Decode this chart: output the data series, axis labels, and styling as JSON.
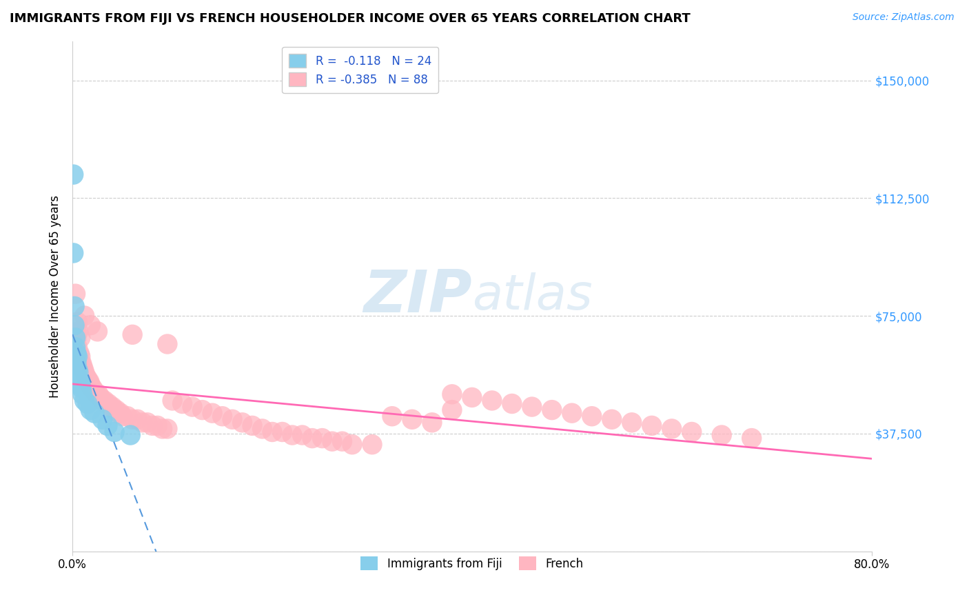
{
  "title": "IMMIGRANTS FROM FIJI VS FRENCH HOUSEHOLDER INCOME OVER 65 YEARS CORRELATION CHART",
  "source": "Source: ZipAtlas.com",
  "ylabel": "Householder Income Over 65 years",
  "xlim": [
    0.0,
    0.8
  ],
  "ylim": [
    0,
    162500
  ],
  "yticks": [
    0,
    37500,
    75000,
    112500,
    150000
  ],
  "ytick_labels": [
    "",
    "$37,500",
    "$75,000",
    "$112,500",
    "$150,000"
  ],
  "xticks": [
    0.0,
    0.8
  ],
  "xtick_labels": [
    "0.0%",
    "80.0%"
  ],
  "fiji_R": "-0.118",
  "fiji_N": "24",
  "french_R": "-0.385",
  "french_N": "88",
  "fiji_color": "#87CEEB",
  "french_color": "#FFB6C1",
  "fiji_line_color": "#5599DD",
  "french_line_color": "#FF69B4",
  "background_color": "#ffffff",
  "grid_color": "#cccccc",
  "watermark": "ZIPatlas",
  "fiji_scatter_x": [
    0.001,
    0.001,
    0.002,
    0.002,
    0.003,
    0.003,
    0.004,
    0.004,
    0.005,
    0.005,
    0.006,
    0.006,
    0.007,
    0.008,
    0.009,
    0.01,
    0.012,
    0.015,
    0.018,
    0.022,
    0.03,
    0.035,
    0.042,
    0.058
  ],
  "fiji_scatter_y": [
    120000,
    95000,
    78000,
    72000,
    68000,
    65000,
    63000,
    60000,
    62000,
    58000,
    57000,
    55000,
    54000,
    53000,
    52000,
    50000,
    48000,
    47000,
    45000,
    44000,
    42000,
    40000,
    38000,
    37000
  ],
  "french_scatter_x": [
    0.003,
    0.004,
    0.005,
    0.006,
    0.007,
    0.008,
    0.009,
    0.01,
    0.011,
    0.012,
    0.013,
    0.014,
    0.015,
    0.016,
    0.017,
    0.018,
    0.019,
    0.02,
    0.022,
    0.024,
    0.026,
    0.028,
    0.03,
    0.032,
    0.034,
    0.036,
    0.038,
    0.04,
    0.042,
    0.044,
    0.046,
    0.048,
    0.05,
    0.055,
    0.06,
    0.065,
    0.07,
    0.075,
    0.08,
    0.085,
    0.09,
    0.095,
    0.1,
    0.11,
    0.12,
    0.13,
    0.14,
    0.15,
    0.16,
    0.17,
    0.18,
    0.19,
    0.2,
    0.21,
    0.22,
    0.23,
    0.24,
    0.25,
    0.26,
    0.27,
    0.28,
    0.3,
    0.32,
    0.34,
    0.36,
    0.38,
    0.4,
    0.42,
    0.44,
    0.46,
    0.48,
    0.5,
    0.52,
    0.54,
    0.56,
    0.58,
    0.6,
    0.62,
    0.65,
    0.68,
    0.005,
    0.008,
    0.012,
    0.018,
    0.025,
    0.06,
    0.095,
    0.38
  ],
  "french_scatter_y": [
    82000,
    68000,
    65000,
    70000,
    63000,
    62000,
    60000,
    59000,
    58000,
    57000,
    56000,
    55000,
    55000,
    54000,
    54000,
    53000,
    52000,
    52000,
    51000,
    50000,
    50000,
    49000,
    48000,
    48000,
    47000,
    47000,
    46000,
    46000,
    45000,
    45000,
    44000,
    44000,
    43000,
    43000,
    42000,
    42000,
    41000,
    41000,
    40000,
    40000,
    39000,
    39000,
    48000,
    47000,
    46000,
    45000,
    44000,
    43000,
    42000,
    41000,
    40000,
    39000,
    38000,
    38000,
    37000,
    37000,
    36000,
    36000,
    35000,
    35000,
    34000,
    34000,
    43000,
    42000,
    41000,
    50000,
    49000,
    48000,
    47000,
    46000,
    45000,
    44000,
    43000,
    42000,
    41000,
    40000,
    39000,
    38000,
    37000,
    36000,
    73000,
    68000,
    75000,
    72000,
    70000,
    69000,
    66000,
    45000
  ]
}
